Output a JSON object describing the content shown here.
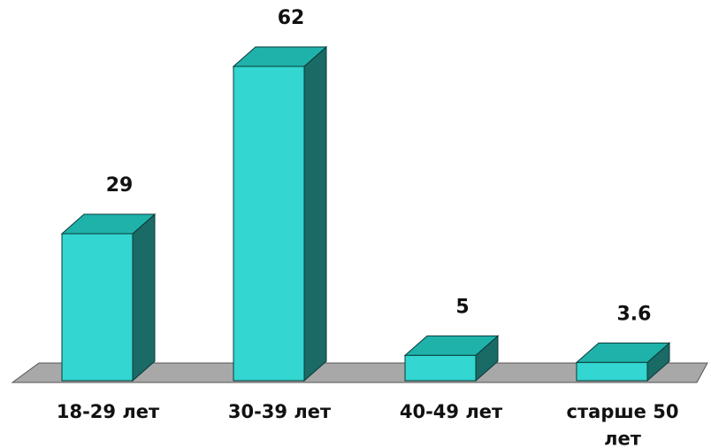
{
  "chart_data": {
    "type": "bar",
    "style": "3d-column",
    "categories": [
      "18-29 лет",
      "30-39 лет",
      "40-49 лет",
      "старше 50 лет"
    ],
    "category_lines": [
      [
        "18-29 лет"
      ],
      [
        "30-39 лет"
      ],
      [
        "40-49 лет"
      ],
      [
        "старше 50",
        "лет"
      ]
    ],
    "values": [
      29,
      62,
      5,
      3.6
    ],
    "value_labels": [
      "29",
      "62",
      "5",
      "3.6"
    ],
    "ylim": [
      0,
      62
    ],
    "grid": false,
    "legend": "none",
    "colors": {
      "bar_front": "#33d6d0",
      "bar_top": "#1fb2ab",
      "bar_side": "#1a6a66",
      "bar_outline": "#0a3a38",
      "floor": "#a8a8a8",
      "floor_outline": "#555555"
    }
  }
}
